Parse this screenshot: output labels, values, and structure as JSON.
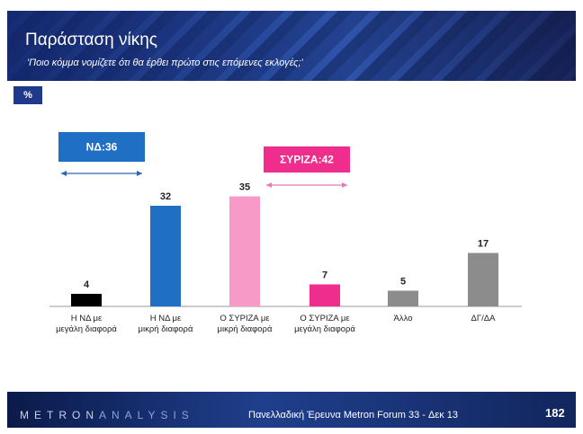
{
  "header": {
    "title": "Παράσταση νίκης",
    "subtitle": "'Ποιο κόμμα νομίζετε ότι θα έρθει πρώτο στις επόμενες εκλογές;'"
  },
  "unit_badge": "%",
  "chart_data": {
    "type": "bar",
    "categories": [
      "Η ΝΔ με μεγάλη διαφορά",
      "Η ΝΔ με μικρή διαφορά",
      "Ο ΣΥΡΙΖΑ με μικρή διαφορά",
      "Ο ΣΥΡΙΖΑ με μεγάλη διαφορά",
      "Άλλο",
      "ΔΓ/ΔΑ"
    ],
    "values": [
      4,
      32,
      35,
      7,
      5,
      17
    ],
    "colors": [
      "#000000",
      "#1f6fc4",
      "#f79ac8",
      "#ee2d8c",
      "#8c8c8c",
      "#8c8c8c"
    ],
    "ylim": [
      0,
      40
    ],
    "grid": false,
    "annotations": [
      {
        "label": "ΝΔ:36",
        "categories": [
          0,
          1
        ],
        "color": "#1f6fc4",
        "arrow_color": "#2a63b6"
      },
      {
        "label": "ΣΥΡΙΖΑ:42",
        "categories": [
          2,
          3
        ],
        "color": "#ee2d8c",
        "arrow_color": "#e879b6"
      }
    ]
  },
  "footer": {
    "logo_dark": "METRON",
    "logo_light": "ANALYSIS",
    "survey": "Πανελλαδική Έρευνα Metron Forum 33 - Δεκ 13",
    "page": "182"
  }
}
